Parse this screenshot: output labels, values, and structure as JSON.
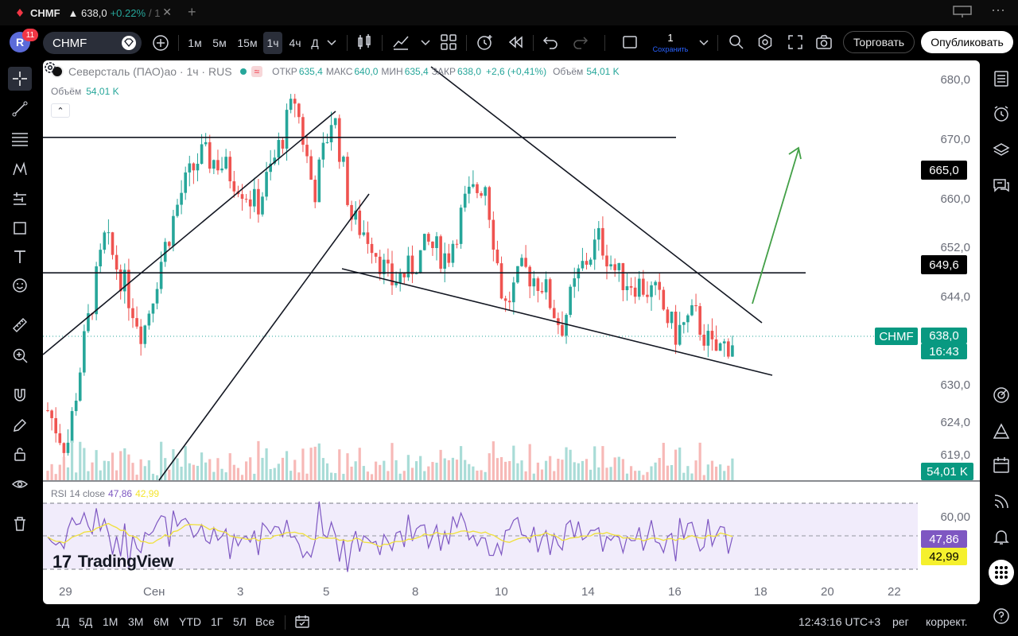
{
  "browser_tab": {
    "symbol": "CHMF",
    "price": "▲ 638,0",
    "change": "+0.22%",
    "sep": "/ 1",
    "close": "✕",
    "new_tab": "+"
  },
  "toolbar": {
    "avatar": "R",
    "notifications": "11",
    "symbol": "CHMF",
    "intervals": [
      "1м",
      "5м",
      "15м",
      "1ч",
      "4ч",
      "Д"
    ],
    "active_interval": "1ч",
    "layout_count": "1",
    "save_label": "Сохранить",
    "trade_label": "Торговать",
    "publish_label": "Опубликовать"
  },
  "legend": {
    "title": "Северсталь (ПАО)ао · 1ч · RUS",
    "wave": "≈",
    "open_label": "ОТКР",
    "open": "635,4",
    "high_label": "МАКС",
    "high": "640,0",
    "low_label": "МИН",
    "low": "635,4",
    "close_label": "ЗАКР",
    "close": "638,0",
    "change": "+2,6 (+0,41%)",
    "volume_label": "Объём",
    "volume": "54,01 K",
    "vol_row_label": "Объём",
    "vol_row_value": "54,01 K",
    "collapse": "⌃"
  },
  "price_axis": {
    "ticks": [
      "680,0",
      "670,0",
      "660,0",
      "652,0",
      "644,0",
      "630,0",
      "624,0",
      "619,0"
    ],
    "tag_665": "665,0",
    "tag_649": "649,6",
    "symbol_tag": "CHMF",
    "last_price": "638,0",
    "countdown": "16:43",
    "volume_tag": "54,01 K"
  },
  "rsi": {
    "label": "RSI 14 close",
    "value": "47,86",
    "ma": "42,99",
    "tick_60": "60,00",
    "tag_rsi": "47,86",
    "tag_ma": "42,99",
    "line_color": "#7e57c2",
    "ma_color": "#f5e52d"
  },
  "branding": {
    "name": "TradingView",
    "mark": "17"
  },
  "time_axis": [
    "29",
    "Сен",
    "3",
    "5",
    "8",
    "10",
    "14",
    "16",
    "18",
    "20",
    "22"
  ],
  "bottom_bar": {
    "ranges": [
      "1Д",
      "5Д",
      "1М",
      "3М",
      "6М",
      "YTD",
      "1Г",
      "5Л",
      "Все"
    ],
    "clock": "12:43:16 UTC+3",
    "session": "рег",
    "adjust": "коррект."
  },
  "chart_data": {
    "type": "candlestick",
    "symbol": "CHMF",
    "interval": "1h",
    "ylim": [
      617,
      683
    ],
    "close_path": [
      628,
      622,
      640,
      655,
      648,
      640,
      652,
      662,
      668,
      667,
      664,
      660,
      668,
      677,
      662,
      675,
      658,
      655,
      648,
      650,
      654,
      652,
      661,
      664,
      644,
      650,
      648,
      641,
      650,
      655,
      649,
      648,
      646,
      640,
      643,
      637,
      639
    ],
    "horizontal_levels": [
      670.9,
      649.6
    ],
    "colors": {
      "up": "#26a69a",
      "down": "#ef5350",
      "trend": "#131722",
      "arrow": "#43a047"
    },
    "rsi_ylim": [
      20,
      70
    ]
  }
}
